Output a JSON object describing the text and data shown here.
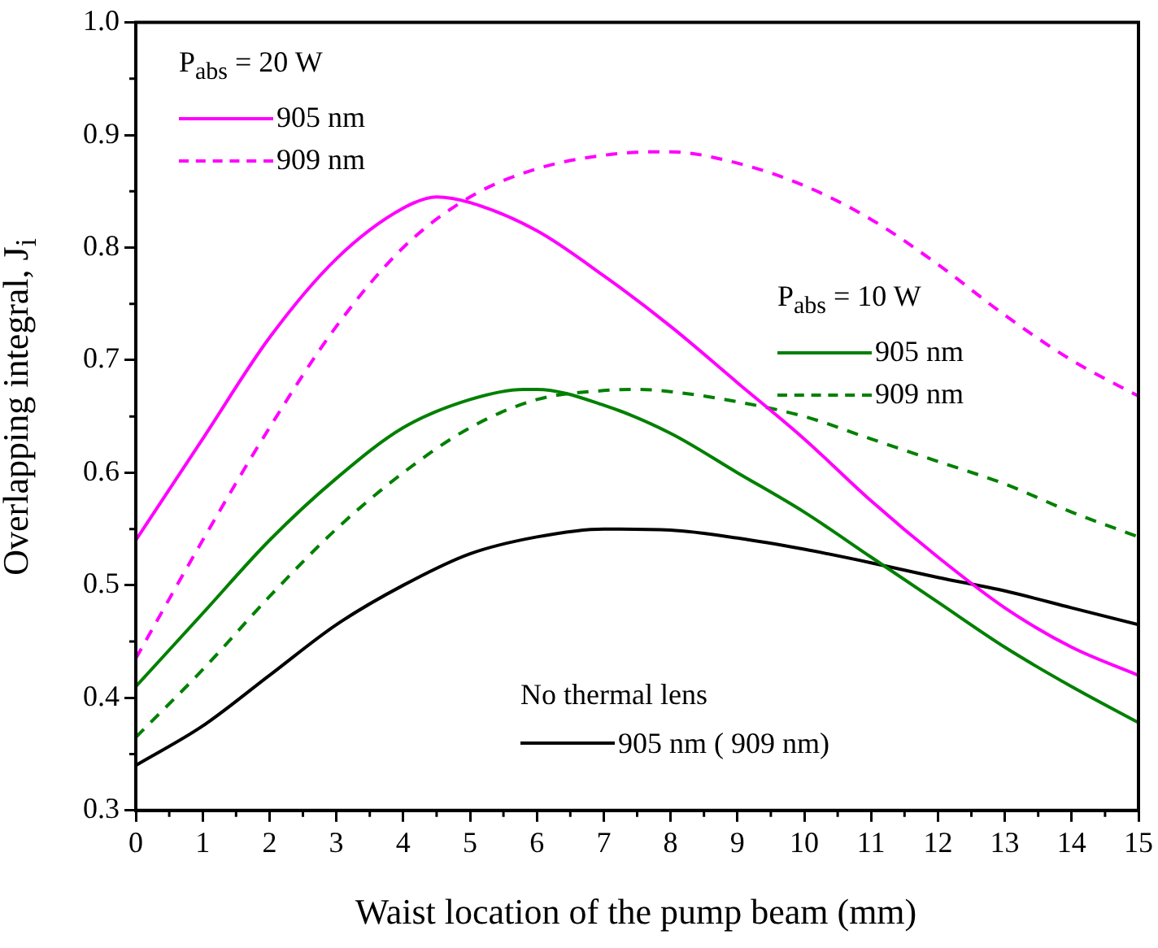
{
  "chart_data": {
    "type": "line",
    "xlabel": "Waist location of the pump beam (mm)",
    "ylabel": "Overlapping integral, J$_{i}$",
    "xlim": [
      0,
      15
    ],
    "xticks": [
      0,
      1,
      2,
      3,
      4,
      5,
      6,
      7,
      8,
      9,
      10,
      11,
      12,
      13,
      14,
      15
    ],
    "ylim": [
      0.3,
      1.0
    ],
    "yticks": [
      0.3,
      0.4,
      0.5,
      0.6,
      0.7,
      0.8,
      0.9,
      {
        "value": 1.0,
        "label": "1.0"
      }
    ],
    "grid": false,
    "legend": "left",
    "marker": "none",
    "annotations": [
      "P$_{abs}$ = 20 W",
      "P$_{abs}$ = 10 W",
      "No thermal lens"
    ],
    "series": [
      {
        "name": "905 nm",
        "color": "#ff00ff",
        "line_style": "solid",
        "x": [
          0,
          1,
          2,
          3,
          4,
          4.5,
          5,
          6,
          7,
          8,
          9,
          10,
          11,
          12,
          13,
          14,
          15
        ],
        "values": [
          0.54,
          0.63,
          0.72,
          0.79,
          0.835,
          0.845,
          0.84,
          0.815,
          0.775,
          0.73,
          0.68,
          0.63,
          0.575,
          0.525,
          0.48,
          0.445,
          0.42
        ]
      },
      {
        "name": "909 nm",
        "color": "#ff00ff",
        "line_style": "dashed",
        "x": [
          0,
          1,
          2,
          3,
          4,
          5,
          6,
          7,
          7.7,
          8,
          9,
          10,
          11,
          12,
          13,
          14,
          15
        ],
        "values": [
          0.435,
          0.54,
          0.64,
          0.73,
          0.8,
          0.845,
          0.87,
          0.882,
          0.885,
          0.885,
          0.875,
          0.855,
          0.825,
          0.785,
          0.74,
          0.7,
          0.668
        ]
      },
      {
        "name": "905 nm",
        "color": "#008000",
        "line_style": "solid",
        "x": [
          0,
          1,
          2,
          3,
          4,
          5,
          5.8,
          6,
          7,
          8,
          9,
          10,
          11,
          12,
          13,
          14,
          15
        ],
        "values": [
          0.41,
          0.475,
          0.54,
          0.595,
          0.64,
          0.665,
          0.674,
          0.674,
          0.66,
          0.635,
          0.6,
          0.565,
          0.525,
          0.485,
          0.445,
          0.41,
          0.378
        ]
      },
      {
        "name": "909 nm",
        "color": "#008000",
        "line_style": "dashed",
        "x": [
          0,
          1,
          2,
          3,
          4,
          5,
          6,
          7,
          7.5,
          8,
          9,
          10,
          11,
          12,
          13,
          14,
          15
        ],
        "values": [
          0.365,
          0.425,
          0.49,
          0.55,
          0.6,
          0.64,
          0.665,
          0.673,
          0.674,
          0.672,
          0.663,
          0.65,
          0.63,
          0.61,
          0.59,
          0.565,
          0.543
        ]
      },
      {
        "name": "905 nm ( 909 nm)",
        "color": "#000000",
        "line_style": "solid",
        "x": [
          0,
          1,
          2,
          3,
          4,
          5,
          6,
          7,
          8,
          9,
          10,
          11,
          12,
          13,
          14,
          15
        ],
        "values": [
          0.34,
          0.375,
          0.42,
          0.465,
          0.5,
          0.528,
          0.543,
          0.55,
          0.549,
          0.542,
          0.532,
          0.52,
          0.507,
          0.495,
          0.48,
          0.465
        ]
      }
    ]
  }
}
